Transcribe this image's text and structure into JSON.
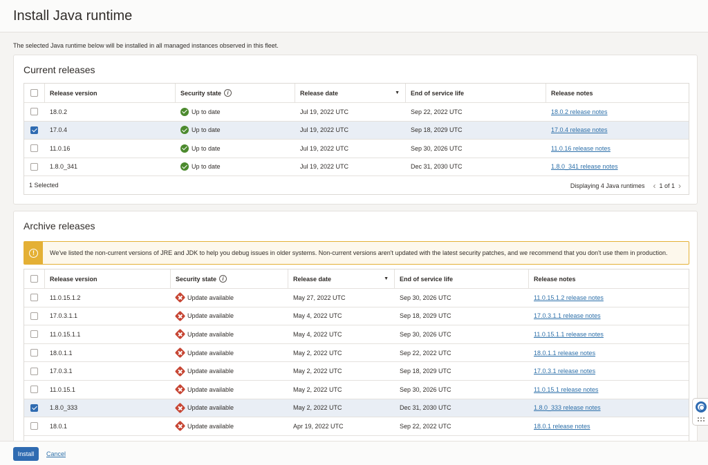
{
  "page": {
    "title": "Install Java runtime",
    "intro": "The selected Java runtime below will be installed in all managed instances observed in this fleet."
  },
  "current": {
    "title": "Current releases",
    "columns": {
      "version": "Release version",
      "security": "Security state",
      "date": "Release date",
      "eosl": "End of service life",
      "notes": "Release notes"
    },
    "rows": [
      {
        "version": "18.0.2",
        "security": "Up to date",
        "date": "Jul 19, 2022 UTC",
        "eosl": "Sep 22, 2022 UTC",
        "notes": "18.0.2 release notes",
        "selected": false
      },
      {
        "version": "17.0.4",
        "security": "Up to date",
        "date": "Jul 19, 2022 UTC",
        "eosl": "Sep 18, 2029 UTC",
        "notes": "17.0.4 release notes",
        "selected": true
      },
      {
        "version": "11.0.16",
        "security": "Up to date",
        "date": "Jul 19, 2022 UTC",
        "eosl": "Sep 30, 2026 UTC",
        "notes": "11.0.16 release notes",
        "selected": false
      },
      {
        "version": "1.8.0_341",
        "security": "Up to date",
        "date": "Jul 19, 2022 UTC",
        "eosl": "Dec 31, 2030 UTC",
        "notes": "1.8.0_341 release notes",
        "selected": false
      }
    ],
    "selected_count": "1 Selected",
    "displaying": "Displaying 4 Java runtimes",
    "pager": "1 of 1"
  },
  "archive": {
    "title": "Archive releases",
    "warning": "We've listed the non-current versions of JRE and JDK to help you debug issues in older systems. Non-current versions aren't updated with the latest security patches, and we recommend that you don't use them in production.",
    "columns": {
      "version": "Release version",
      "security": "Security state",
      "date": "Release date",
      "eosl": "End of service life",
      "notes": "Release notes"
    },
    "rows": [
      {
        "version": "11.0.15.1.2",
        "security": "Update available",
        "date": "May 27, 2022 UTC",
        "eosl": "Sep 30, 2026 UTC",
        "notes": "11.0.15.1.2 release notes",
        "selected": false
      },
      {
        "version": "17.0.3.1.1",
        "security": "Update available",
        "date": "May 4, 2022 UTC",
        "eosl": "Sep 18, 2029 UTC",
        "notes": "17.0.3.1.1 release notes",
        "selected": false
      },
      {
        "version": "11.0.15.1.1",
        "security": "Update available",
        "date": "May 4, 2022 UTC",
        "eosl": "Sep 30, 2026 UTC",
        "notes": "11.0.15.1.1 release notes",
        "selected": false
      },
      {
        "version": "18.0.1.1",
        "security": "Update available",
        "date": "May 2, 2022 UTC",
        "eosl": "Sep 22, 2022 UTC",
        "notes": "18.0.1.1 release notes",
        "selected": false
      },
      {
        "version": "17.0.3.1",
        "security": "Update available",
        "date": "May 2, 2022 UTC",
        "eosl": "Sep 18, 2029 UTC",
        "notes": "17.0.3.1 release notes",
        "selected": false
      },
      {
        "version": "11.0.15.1",
        "security": "Update available",
        "date": "May 2, 2022 UTC",
        "eosl": "Sep 30, 2026 UTC",
        "notes": "11.0.15.1 release notes",
        "selected": false
      },
      {
        "version": "1.8.0_333",
        "security": "Update available",
        "date": "May 2, 2022 UTC",
        "eosl": "Dec 31, 2030 UTC",
        "notes": "1.8.0_333 release notes",
        "selected": true
      },
      {
        "version": "18.0.1",
        "security": "Update available",
        "date": "Apr 19, 2022 UTC",
        "eosl": "Sep 22, 2022 UTC",
        "notes": "18.0.1 release notes",
        "selected": false
      }
    ]
  },
  "actions": {
    "install": "Install",
    "cancel": "Cancel"
  },
  "icons": {
    "up_to_date": "check-circle-icon",
    "update_available": "error-diamond-icon",
    "warning": "warning-icon",
    "help": "help-lifebuoy-icon"
  },
  "colors": {
    "primary": "#2f6bb1",
    "ok": "#4c8a2e",
    "error": "#c74634",
    "warning": "#e4b035",
    "selected_row": "#e9eef5"
  }
}
